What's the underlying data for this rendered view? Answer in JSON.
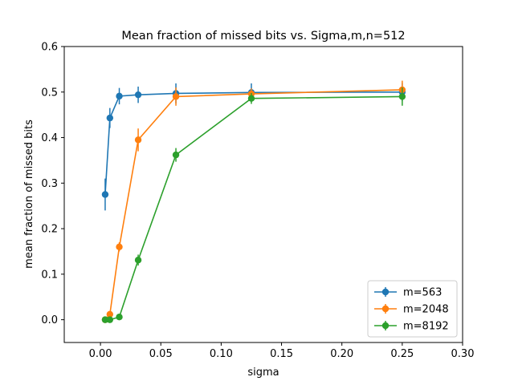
{
  "chart_data": {
    "type": "line",
    "title": "Mean fraction of missed bits vs. Sigma,m,n=512",
    "xlabel": "sigma",
    "ylabel": "mean fraction of missed bits",
    "xlim": [
      -0.03,
      0.3
    ],
    "ylim": [
      -0.05,
      0.6
    ],
    "xticks": [
      0.0,
      0.05,
      0.1,
      0.15,
      0.2,
      0.25,
      0.3
    ],
    "xtick_labels": [
      "0.00",
      "0.05",
      "0.10",
      "0.15",
      "0.20",
      "0.25",
      "0.30"
    ],
    "yticks": [
      0.0,
      0.1,
      0.2,
      0.3,
      0.4,
      0.5,
      0.6
    ],
    "ytick_labels": [
      "0.0",
      "0.1",
      "0.2",
      "0.3",
      "0.4",
      "0.5",
      "0.6"
    ],
    "legend_position": "lower-right",
    "grid": false,
    "series": [
      {
        "name": "m=563",
        "color": "#1f77b4",
        "x": [
          0.0039,
          0.0078,
          0.0156,
          0.03125,
          0.0625,
          0.125,
          0.25
        ],
        "y": [
          0.275,
          0.443,
          0.491,
          0.494,
          0.497,
          0.499,
          0.5
        ],
        "err": [
          0.035,
          0.022,
          0.018,
          0.018,
          0.022,
          0.02,
          0.02
        ]
      },
      {
        "name": "m=2048",
        "color": "#ff7f0e",
        "x": [
          0.0039,
          0.0078,
          0.0156,
          0.03125,
          0.0625,
          0.125,
          0.25
        ],
        "y": [
          0.0,
          0.012,
          0.16,
          0.395,
          0.49,
          0.496,
          0.505
        ],
        "err": [
          0.003,
          0.005,
          0.01,
          0.025,
          0.02,
          0.012,
          0.02
        ]
      },
      {
        "name": "m=8192",
        "color": "#2ca02c",
        "x": [
          0.0039,
          0.0078,
          0.0156,
          0.03125,
          0.0625,
          0.125,
          0.25
        ],
        "y": [
          0.0,
          0.0,
          0.006,
          0.131,
          0.362,
          0.486,
          0.49
        ],
        "err": [
          0.002,
          0.002,
          0.003,
          0.012,
          0.015,
          0.012,
          0.02
        ]
      }
    ]
  }
}
